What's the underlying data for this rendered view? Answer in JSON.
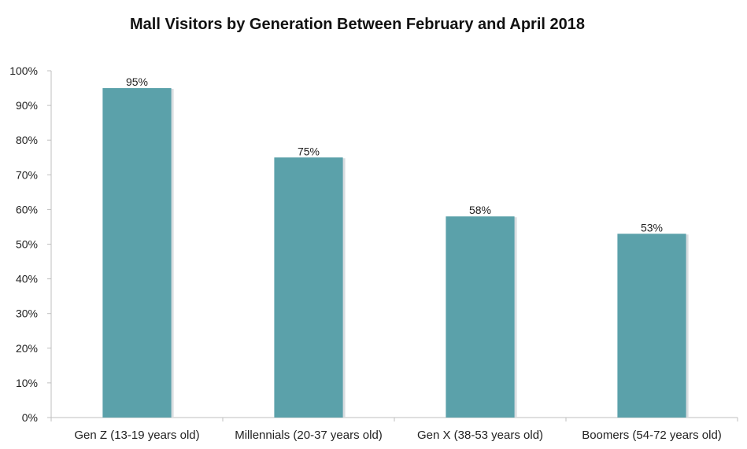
{
  "chart_data": {
    "type": "bar",
    "title": "Mall Visitors by Generation Between February and April 2018",
    "xlabel": "",
    "ylabel": "",
    "categories": [
      "Gen Z (13-19 years old)",
      "Millennials (20-37 years old)",
      "Gen X (38-53 years old)",
      "Boomers (54-72 years old)"
    ],
    "values": [
      95,
      75,
      58,
      53
    ],
    "data_labels": [
      "95%",
      "75%",
      "58%",
      "53%"
    ],
    "ylim": [
      0,
      100
    ],
    "yticks": [
      0,
      10,
      20,
      30,
      40,
      50,
      60,
      70,
      80,
      90,
      100
    ],
    "ytick_labels": [
      "0%",
      "10%",
      "20%",
      "30%",
      "40%",
      "50%",
      "60%",
      "70%",
      "80%",
      "90%",
      "100%"
    ],
    "grid": false,
    "legend": "none",
    "bar_color": "#5ba1aa"
  }
}
